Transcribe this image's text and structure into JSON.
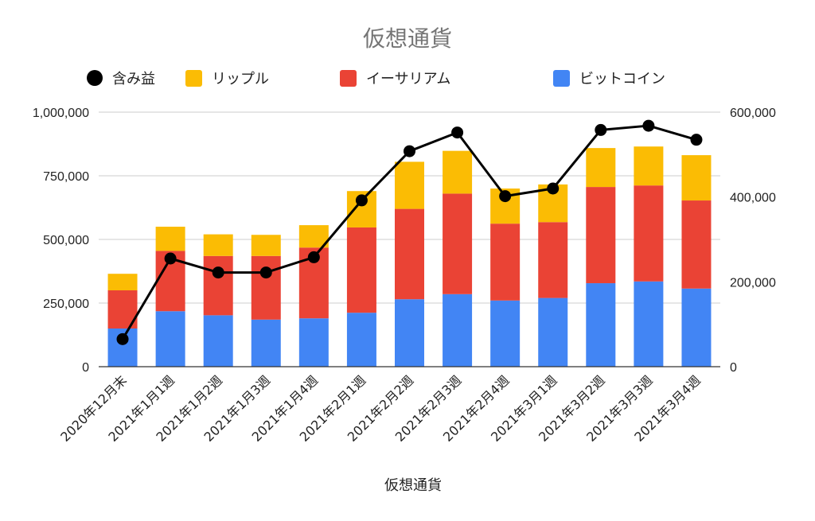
{
  "chart_data": {
    "type": "bar",
    "title": "仮想通貨",
    "xlabel": "仮想通貨",
    "ylabel": "",
    "ylim": [
      0,
      1000000
    ],
    "y2lim": [
      0,
      600000
    ],
    "stacked": true,
    "grid": true,
    "legend_position": "top",
    "categories": [
      "2020年12月末",
      "2021年1月1週",
      "2021年1月2週",
      "2021年1月3週",
      "2021年1月4週",
      "2021年2月1週",
      "2021年2月2週",
      "2021年2月3週",
      "2021年2月4週",
      "2021年3月1週",
      "2021年3月2週",
      "2021年3月3週",
      "2021年3月4週"
    ],
    "y_ticks": [
      "0",
      "250,000",
      "500,000",
      "750,000",
      "1,000,000"
    ],
    "y_tick_values": [
      0,
      250000,
      500000,
      750000,
      1000000
    ],
    "y2_ticks": [
      "0",
      "200,000",
      "400,000",
      "600,000"
    ],
    "y2_tick_values": [
      0,
      200000,
      400000,
      600000
    ],
    "series": [
      {
        "name": "ビットコイン",
        "type": "bar",
        "color": "#4285f4",
        "values": [
          150000,
          218000,
          202000,
          185000,
          190000,
          212000,
          265000,
          285000,
          260000,
          270000,
          328000,
          335000,
          307000
        ]
      },
      {
        "name": "イーサリアム",
        "type": "bar",
        "color": "#ea4335",
        "values": [
          150000,
          237000,
          233000,
          250000,
          278000,
          335000,
          355000,
          395000,
          302000,
          298000,
          378000,
          377000,
          346000
        ]
      },
      {
        "name": "リップル",
        "type": "bar",
        "color": "#fbbc04",
        "values": [
          65000,
          95000,
          85000,
          83000,
          88000,
          143000,
          185000,
          168000,
          138000,
          148000,
          153000,
          153000,
          178000
        ]
      },
      {
        "name": "含み益",
        "type": "line",
        "axis": "right",
        "color": "#000000",
        "values": [
          65000,
          255000,
          222000,
          222000,
          258000,
          392000,
          508000,
          552000,
          402000,
          420000,
          558000,
          568000,
          535000
        ]
      }
    ],
    "legend_order": [
      "含み益",
      "リップル",
      "イーサリアム",
      "ビットコイン"
    ]
  }
}
